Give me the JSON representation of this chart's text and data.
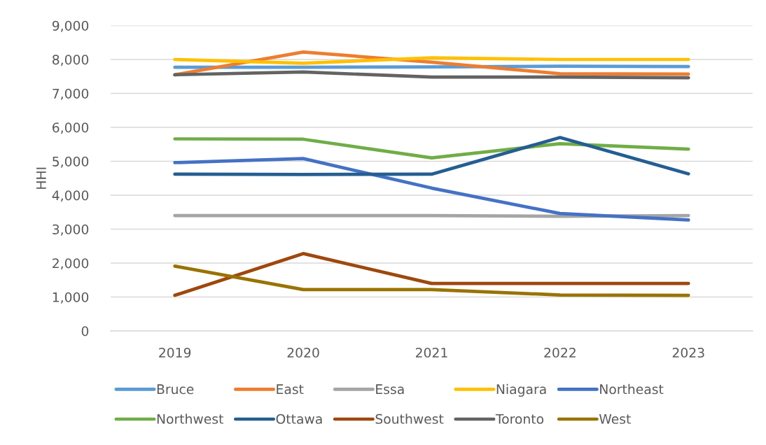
{
  "chart_data": {
    "type": "line",
    "ylabel": "HHI",
    "categories": [
      "2019",
      "2020",
      "2021",
      "2022",
      "2023"
    ],
    "series": [
      {
        "name": "Bruce",
        "color": "#5b9bd5",
        "values": [
          7770,
          7770,
          7780,
          7800,
          7790
        ]
      },
      {
        "name": "East",
        "color": "#ed7d31",
        "values": [
          7550,
          8220,
          7920,
          7580,
          7570
        ]
      },
      {
        "name": "Essa",
        "color": "#a5a5a5",
        "values": [
          3400,
          3400,
          3400,
          3380,
          3400
        ]
      },
      {
        "name": "Niagara",
        "color": "#ffc000",
        "values": [
          8000,
          7890,
          8050,
          8000,
          8000
        ]
      },
      {
        "name": "Northeast",
        "color": "#4472c4",
        "values": [
          4960,
          5080,
          4210,
          3460,
          3270
        ]
      },
      {
        "name": "Northwest",
        "color": "#70ad47",
        "values": [
          5660,
          5650,
          5100,
          5520,
          5360
        ]
      },
      {
        "name": "Ottawa",
        "color": "#255e91",
        "values": [
          4620,
          4610,
          4620,
          5700,
          4630
        ]
      },
      {
        "name": "Southwest",
        "color": "#9e480e",
        "values": [
          1050,
          2280,
          1400,
          1400,
          1400
        ]
      },
      {
        "name": "Toronto",
        "color": "#636363",
        "values": [
          7550,
          7630,
          7480,
          7480,
          7460
        ]
      },
      {
        "name": "West",
        "color": "#997300",
        "values": [
          1910,
          1220,
          1220,
          1060,
          1050
        ]
      }
    ],
    "ylim": [
      0,
      9000
    ],
    "yticks": [
      {
        "value": 0,
        "label": "0"
      },
      {
        "value": 1000,
        "label": "1,000"
      },
      {
        "value": 2000,
        "label": "2,000"
      },
      {
        "value": 3000,
        "label": "3,000"
      },
      {
        "value": 4000,
        "label": "4,000"
      },
      {
        "value": 5000,
        "label": "5,000"
      },
      {
        "value": 6000,
        "label": "6,000"
      },
      {
        "value": 7000,
        "label": "7,000"
      },
      {
        "value": 8000,
        "label": "8,000"
      },
      {
        "value": 9000,
        "label": "9,000"
      }
    ],
    "grid": "y",
    "legend": "bottom",
    "marker": "none",
    "line_style": "solid"
  }
}
